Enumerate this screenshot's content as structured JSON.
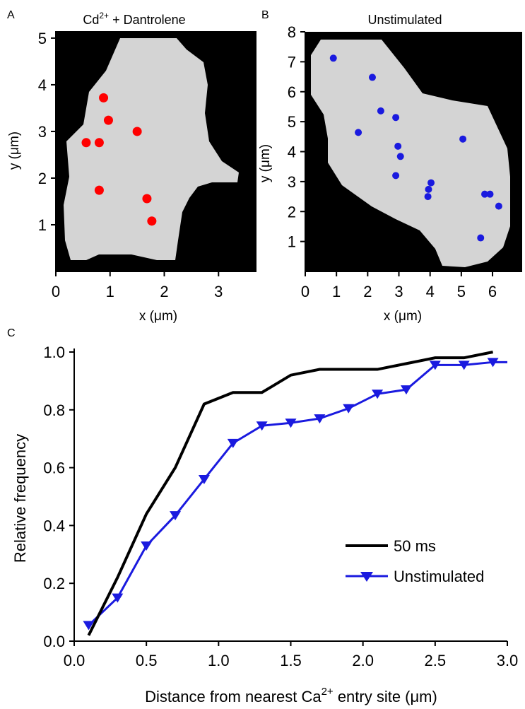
{
  "colors": {
    "red_points": "#ff0000",
    "blue_points": "#1a1adf",
    "curve_50ms": "#000000",
    "curve_unstim": "#1a1adf",
    "cell_fill": "#d4d4d4",
    "background": "#000000"
  },
  "chart_data": [
    {
      "panel": "A",
      "type": "scatter",
      "title_main": "Cd",
      "title_sup": "2+",
      "title_rest": " + Dantrolene",
      "xlabel": "x (μm)",
      "ylabel": "y (μm)",
      "xlim": [
        0,
        3.7
      ],
      "ylim": [
        0,
        5.15
      ],
      "xticks": [
        "0",
        "1",
        "2",
        "3"
      ],
      "yticks": [
        "1",
        "2",
        "3",
        "4",
        "5"
      ],
      "points": [
        {
          "x": 0.88,
          "y": 3.72
        },
        {
          "x": 0.97,
          "y": 3.24
        },
        {
          "x": 1.5,
          "y": 3.0
        },
        {
          "x": 0.56,
          "y": 2.76
        },
        {
          "x": 0.8,
          "y": 2.76
        },
        {
          "x": 0.8,
          "y": 1.74
        },
        {
          "x": 1.68,
          "y": 1.56
        },
        {
          "x": 1.77,
          "y": 1.08
        }
      ]
    },
    {
      "panel": "B",
      "type": "scatter",
      "title": "Unstimulated",
      "xlabel": "x (μm)",
      "ylabel": "y (μm)",
      "xlim": [
        0,
        6.95
      ],
      "ylim": [
        0,
        8.0
      ],
      "xticks": [
        "0",
        "1",
        "2",
        "3",
        "4",
        "5",
        "6"
      ],
      "yticks": [
        "1",
        "2",
        "3",
        "4",
        "5",
        "6",
        "7",
        "8"
      ],
      "points": [
        {
          "x": 0.9,
          "y": 7.12
        },
        {
          "x": 2.15,
          "y": 6.48
        },
        {
          "x": 2.42,
          "y": 5.36
        },
        {
          "x": 2.9,
          "y": 5.14
        },
        {
          "x": 1.7,
          "y": 4.64
        },
        {
          "x": 5.05,
          "y": 4.42
        },
        {
          "x": 2.97,
          "y": 4.18
        },
        {
          "x": 3.05,
          "y": 3.84
        },
        {
          "x": 2.9,
          "y": 3.2
        },
        {
          "x": 4.03,
          "y": 2.96
        },
        {
          "x": 3.95,
          "y": 2.74
        },
        {
          "x": 3.93,
          "y": 2.5
        },
        {
          "x": 5.75,
          "y": 2.58
        },
        {
          "x": 5.92,
          "y": 2.58
        },
        {
          "x": 6.2,
          "y": 2.18
        },
        {
          "x": 5.62,
          "y": 1.12
        }
      ]
    },
    {
      "panel": "C",
      "type": "line",
      "xlabel_main": "Distance from nearest Ca",
      "xlabel_sup": "2+",
      "xlabel_rest": " entry site (μm)",
      "ylabel": "Relative frequency",
      "xlim": [
        0,
        3.0
      ],
      "ylim": [
        0,
        1.0
      ],
      "xticks": [
        "0.0",
        "0.5",
        "1.0",
        "1.5",
        "2.0",
        "2.5",
        "3.0"
      ],
      "yticks": [
        "0.0",
        "0.2",
        "0.4",
        "0.6",
        "0.8",
        "1.0"
      ],
      "legend_position": "bottom-right",
      "series": [
        {
          "name": "50 ms",
          "marker": "none",
          "points": [
            [
              0.1,
              0.02
            ],
            [
              0.3,
              0.22
            ],
            [
              0.5,
              0.44
            ],
            [
              0.7,
              0.6
            ],
            [
              0.9,
              0.82
            ],
            [
              1.1,
              0.86
            ],
            [
              1.3,
              0.86
            ],
            [
              1.5,
              0.92
            ],
            [
              1.7,
              0.94
            ],
            [
              1.9,
              0.94
            ],
            [
              2.1,
              0.94
            ],
            [
              2.3,
              0.96
            ],
            [
              2.5,
              0.98
            ],
            [
              2.7,
              0.98
            ],
            [
              2.9,
              1.0
            ]
          ]
        },
        {
          "name": "Unstimulated",
          "marker": "triangle-down",
          "points": [
            [
              0.1,
              0.055
            ],
            [
              0.3,
              0.15
            ],
            [
              0.5,
              0.33
            ],
            [
              0.7,
              0.435
            ],
            [
              0.9,
              0.56
            ],
            [
              1.1,
              0.685
            ],
            [
              1.3,
              0.745
            ],
            [
              1.5,
              0.755
            ],
            [
              1.7,
              0.77
            ],
            [
              1.9,
              0.805
            ],
            [
              2.1,
              0.855
            ],
            [
              2.3,
              0.87
            ],
            [
              2.5,
              0.955
            ],
            [
              2.7,
              0.955
            ],
            [
              2.9,
              0.965
            ],
            [
              3.0,
              0.965
            ]
          ]
        }
      ]
    }
  ]
}
